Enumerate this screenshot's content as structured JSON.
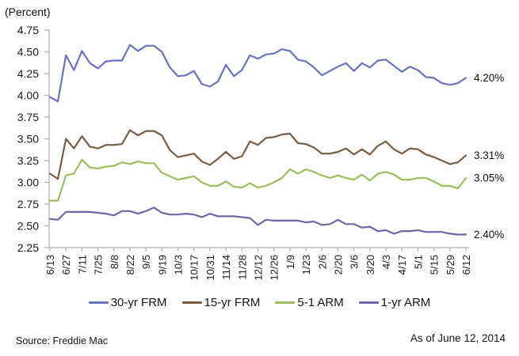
{
  "footer": {
    "source": "Source: Freddie Mac",
    "as_of": "As of June 12, 2014"
  },
  "chart_data": {
    "type": "line",
    "title": "",
    "xlabel": "",
    "ylabel": "(Percent)",
    "ylim": [
      2.25,
      4.75
    ],
    "y_ticks": [
      4.75,
      4.5,
      4.25,
      4.0,
      3.75,
      3.5,
      3.25,
      3.0,
      2.75,
      2.5,
      2.25
    ],
    "grid": false,
    "legend_position": "bottom",
    "label_every": 2,
    "axis_color": "#b3b3b3",
    "x": [
      "6/13",
      "6/20",
      "6/27",
      "7/4",
      "7/11",
      "7/18",
      "7/25",
      "8/1",
      "8/8",
      "8/15",
      "8/22",
      "8/29",
      "9/5",
      "9/12",
      "9/19",
      "9/26",
      "10/3",
      "10/10",
      "10/17",
      "10/24",
      "10/31",
      "11/7",
      "11/14",
      "11/21",
      "11/28",
      "12/5",
      "12/12",
      "12/19",
      "12/26",
      "1/2",
      "1/9",
      "1/16",
      "1/23",
      "1/30",
      "2/6",
      "2/13",
      "2/20",
      "2/27",
      "3/6",
      "3/13",
      "3/20",
      "3/27",
      "4/3",
      "4/10",
      "4/17",
      "4/24",
      "5/1",
      "5/8",
      "5/15",
      "5/22",
      "5/29",
      "6/5",
      "6/12"
    ],
    "series": [
      {
        "name": "30-yr FRM",
        "color": "#6b71c3",
        "end_label": "4.20%",
        "values": [
          3.98,
          3.93,
          4.46,
          4.29,
          4.51,
          4.37,
          4.31,
          4.39,
          4.4,
          4.4,
          4.58,
          4.51,
          4.57,
          4.57,
          4.5,
          4.32,
          4.22,
          4.23,
          4.28,
          4.13,
          4.1,
          4.16,
          4.35,
          4.22,
          4.29,
          4.46,
          4.42,
          4.47,
          4.48,
          4.53,
          4.51,
          4.41,
          4.39,
          4.32,
          4.23,
          4.28,
          4.33,
          4.37,
          4.28,
          4.37,
          4.32,
          4.4,
          4.41,
          4.34,
          4.27,
          4.33,
          4.29,
          4.21,
          4.2,
          4.14,
          4.12,
          4.14,
          4.2
        ]
      },
      {
        "name": "15-yr FRM",
        "color": "#765d46",
        "end_label": "3.31%",
        "values": [
          3.1,
          3.04,
          3.5,
          3.39,
          3.53,
          3.41,
          3.39,
          3.43,
          3.43,
          3.44,
          3.6,
          3.54,
          3.59,
          3.59,
          3.54,
          3.37,
          3.29,
          3.31,
          3.33,
          3.24,
          3.2,
          3.27,
          3.35,
          3.27,
          3.3,
          3.47,
          3.43,
          3.51,
          3.52,
          3.55,
          3.56,
          3.45,
          3.44,
          3.4,
          3.33,
          3.33,
          3.35,
          3.39,
          3.32,
          3.38,
          3.32,
          3.42,
          3.47,
          3.38,
          3.33,
          3.39,
          3.38,
          3.32,
          3.29,
          3.25,
          3.21,
          3.23,
          3.31
        ]
      },
      {
        "name": "5-1 ARM",
        "color": "#9ebd5f",
        "end_label": "3.05%",
        "values": [
          2.79,
          2.79,
          3.08,
          3.1,
          3.26,
          3.17,
          3.16,
          3.18,
          3.19,
          3.23,
          3.21,
          3.24,
          3.22,
          3.22,
          3.11,
          3.07,
          3.03,
          3.05,
          3.07,
          3.0,
          2.96,
          2.96,
          3.01,
          2.95,
          2.94,
          2.99,
          2.94,
          2.96,
          3.0,
          3.05,
          3.15,
          3.1,
          3.15,
          3.12,
          3.08,
          3.05,
          3.08,
          3.05,
          3.03,
          3.09,
          3.02,
          3.1,
          3.12,
          3.09,
          3.03,
          3.03,
          3.05,
          3.05,
          3.01,
          2.96,
          2.96,
          2.93,
          3.05
        ]
      },
      {
        "name": "1-yr ARM",
        "color": "#6c68a8",
        "end_label": "2.40%",
        "values": [
          2.58,
          2.57,
          2.66,
          2.66,
          2.66,
          2.66,
          2.65,
          2.64,
          2.62,
          2.67,
          2.67,
          2.64,
          2.67,
          2.71,
          2.65,
          2.63,
          2.63,
          2.64,
          2.63,
          2.6,
          2.64,
          2.61,
          2.61,
          2.61,
          2.6,
          2.59,
          2.51,
          2.57,
          2.56,
          2.56,
          2.56,
          2.56,
          2.54,
          2.55,
          2.51,
          2.52,
          2.57,
          2.52,
          2.52,
          2.48,
          2.49,
          2.44,
          2.45,
          2.41,
          2.44,
          2.44,
          2.45,
          2.43,
          2.43,
          2.43,
          2.41,
          2.4,
          2.4
        ]
      }
    ]
  }
}
